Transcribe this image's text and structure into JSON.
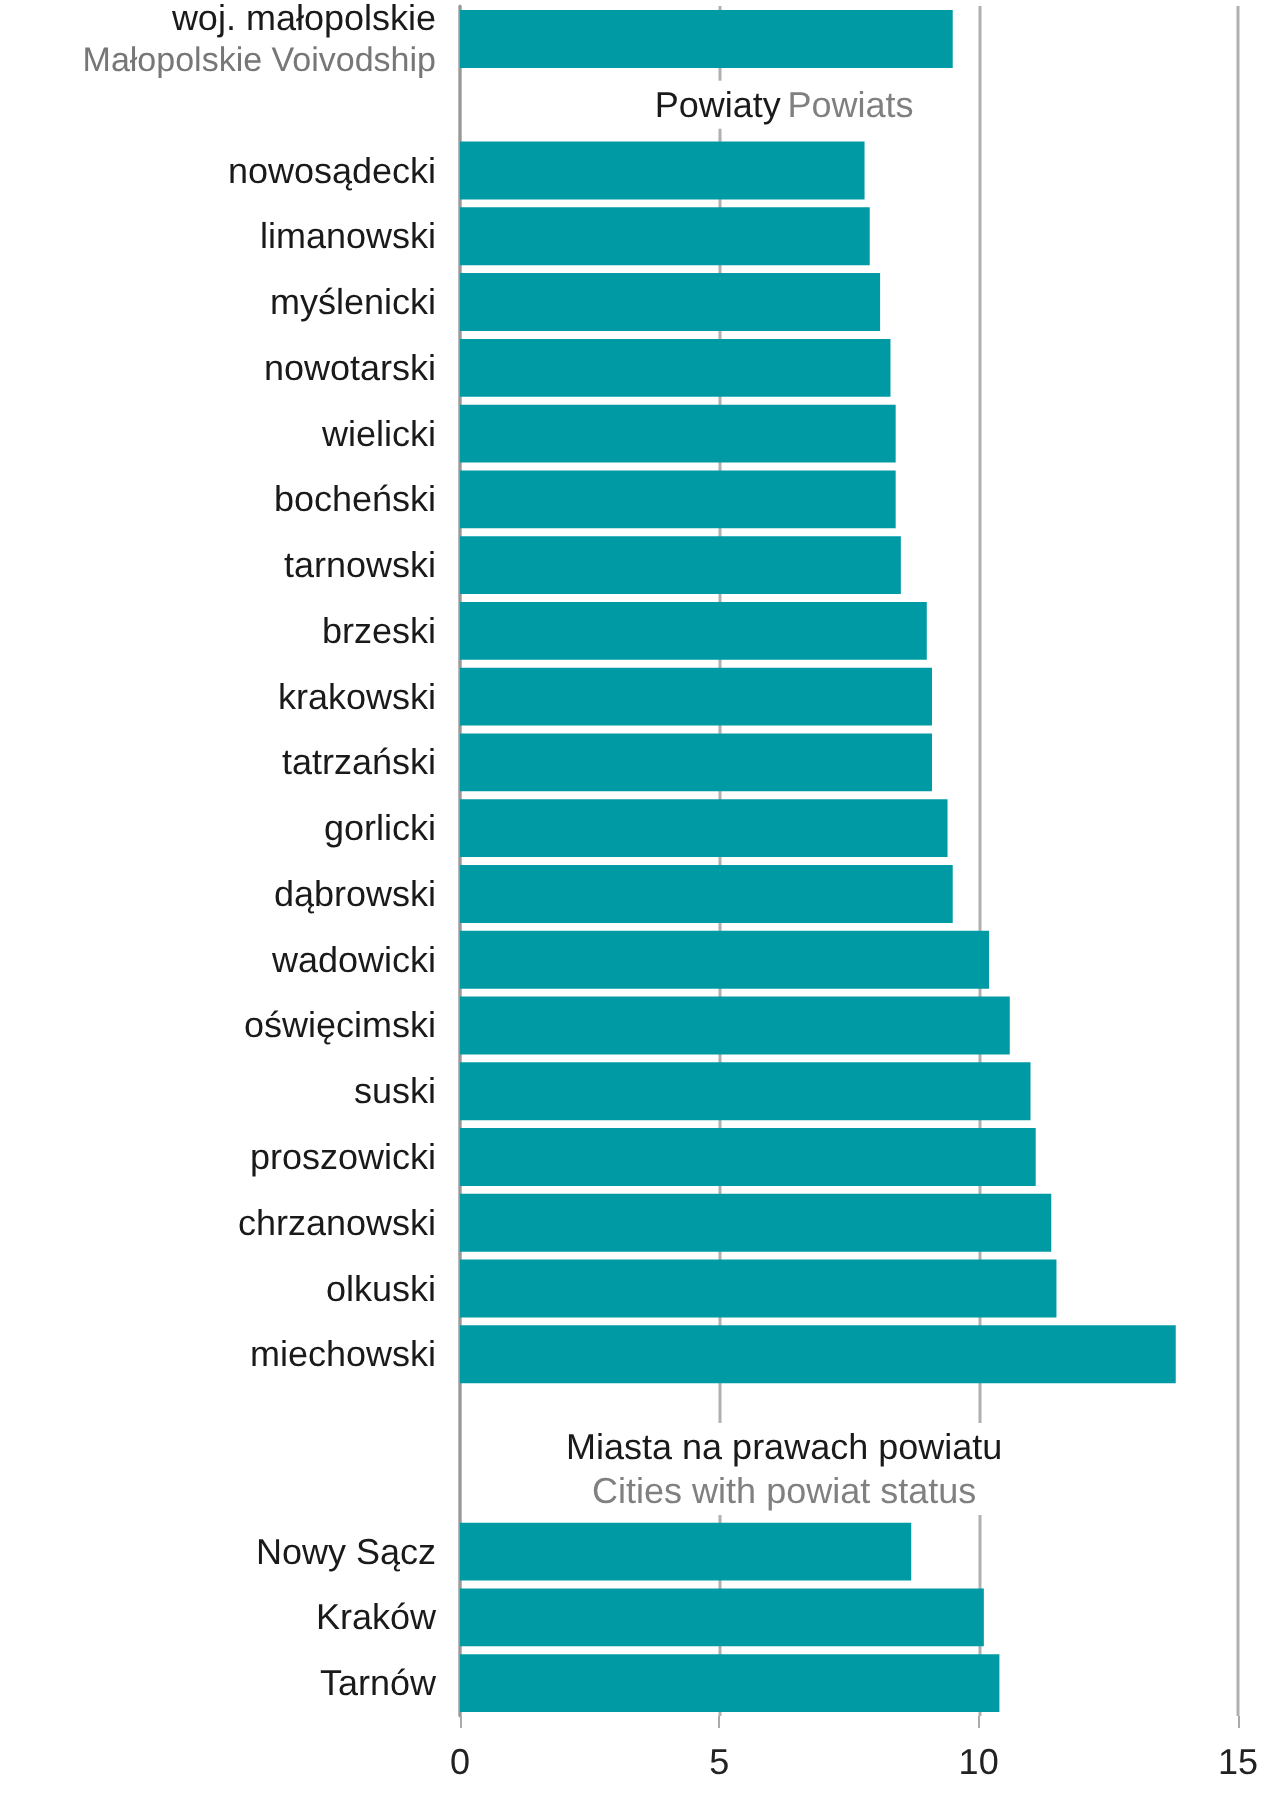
{
  "chart_data": {
    "type": "bar",
    "orientation": "horizontal",
    "categories": [
      "woj. małopolskie\nMałopolskie Voivodship",
      null,
      "nowosądecki",
      "limanowski",
      "myślenicki",
      "nowotarski",
      "wielicki",
      "bocheński",
      "tarnowski",
      "brzeski",
      "krakowski",
      "tatrzański",
      "gorlicki",
      "dąbrowski",
      "wadowicki",
      "oświęcimski",
      "suski",
      "proszowicki",
      "chrzanowski",
      "olkuski",
      "miechowski",
      null,
      null,
      "Nowy Sącz",
      "Kraków",
      "Tarnów"
    ],
    "values": [
      9.5,
      null,
      7.8,
      7.9,
      8.1,
      8.3,
      8.4,
      8.4,
      8.5,
      9.0,
      9.1,
      9.1,
      9.4,
      9.5,
      10.2,
      10.6,
      11.0,
      11.1,
      11.4,
      11.5,
      13.8,
      null,
      null,
      8.7,
      10.1,
      10.4
    ],
    "color": "#009aa4",
    "xlim": [
      0,
      15
    ],
    "xticks": [
      0,
      5,
      10,
      15
    ],
    "grid": "x",
    "annotations": [
      "Powiaty",
      "Powiats",
      "Miasta na prawach powiatu",
      "Cities with powiat status"
    ]
  }
}
